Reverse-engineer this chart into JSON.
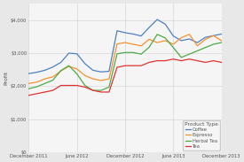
{
  "title": "",
  "ylabel": "Profit",
  "background_color": "#e8e8e8",
  "plot_background": "#f5f5f5",
  "x_labels": [
    "December 2011",
    "June 2012",
    "December 2012",
    "June 2013",
    "December 2013"
  ],
  "x_positions": [
    0,
    6,
    12,
    18,
    24
  ],
  "series": {
    "Coffee": {
      "color": "#4e80c0",
      "values": [
        2380,
        2420,
        2480,
        2580,
        2720,
        3000,
        2980,
        2680,
        2480,
        2430,
        2450,
        3680,
        3620,
        3580,
        3520,
        3780,
        4020,
        3880,
        3520,
        3380,
        3430,
        3320,
        3480,
        3530,
        3580
      ]
    },
    "Espresso": {
      "color": "#f5922f",
      "values": [
        2080,
        2120,
        2220,
        2280,
        2460,
        2600,
        2520,
        2320,
        2220,
        2170,
        2220,
        3280,
        3320,
        3270,
        3220,
        3420,
        3320,
        3380,
        3270,
        3470,
        3570,
        3220,
        3420,
        3530,
        3380
      ]
    },
    "Herbal Tea": {
      "color": "#4eaa48",
      "values": [
        1920,
        1980,
        2080,
        2180,
        2470,
        2620,
        2370,
        2020,
        1870,
        1870,
        1970,
        2980,
        3020,
        3020,
        2970,
        3180,
        3570,
        3460,
        3170,
        2870,
        2970,
        3070,
        3170,
        3270,
        3320
      ]
    },
    "Tea": {
      "color": "#e03232",
      "values": [
        1720,
        1770,
        1820,
        1870,
        2020,
        2020,
        2020,
        1970,
        1870,
        1820,
        1820,
        2570,
        2620,
        2620,
        2620,
        2720,
        2770,
        2770,
        2820,
        2770,
        2820,
        2770,
        2720,
        2770,
        2720
      ]
    }
  },
  "ylim": [
    0,
    4500
  ],
  "yticks": [
    0,
    1000,
    2000,
    3000,
    4000
  ],
  "ytick_labels": [
    "$0",
    "$1,000",
    "$2,000",
    "$3,000",
    "$4,000"
  ],
  "legend_title": "Product Type",
  "grid_color": "#d0d0d0"
}
